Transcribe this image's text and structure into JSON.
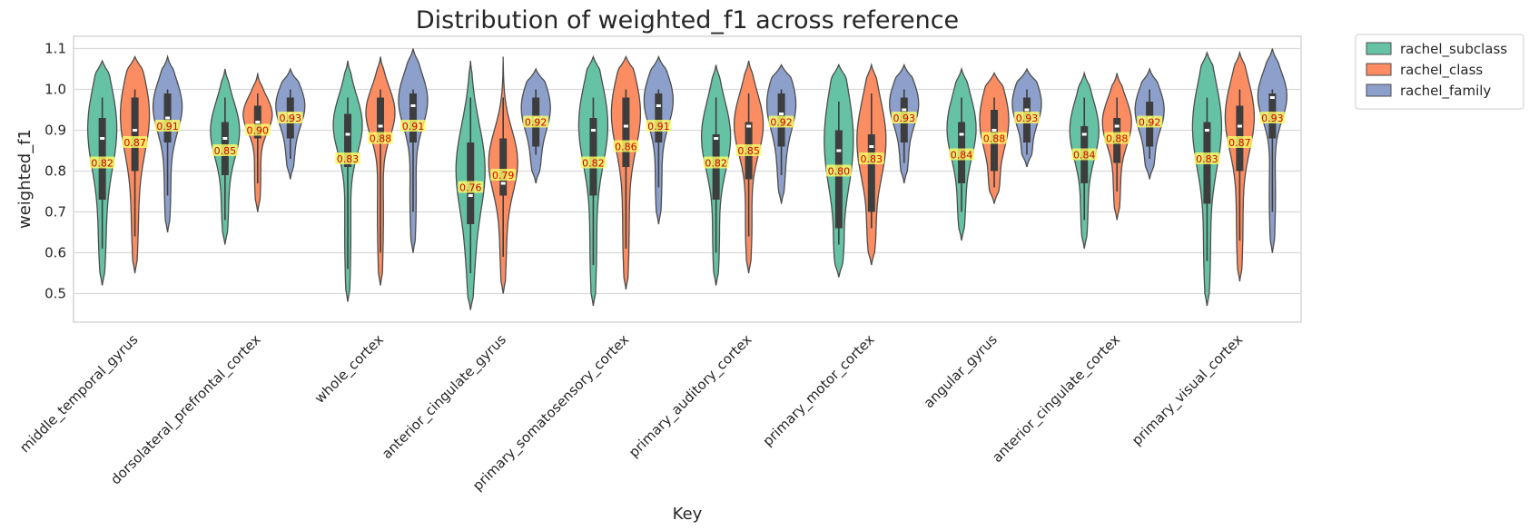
{
  "chart_data": {
    "type": "violin",
    "title": "Distribution of weighted_f1 across reference",
    "xlabel": "Key",
    "ylabel": "weighted_f1",
    "ylim": [
      0.43,
      1.13
    ],
    "yticks": [
      0.5,
      0.6,
      0.7,
      0.8,
      0.9,
      1.0,
      1.1
    ],
    "ytick_labels": [
      "0.5",
      "0.6",
      "0.7",
      "0.8",
      "0.9",
      "1.0",
      "1.1"
    ],
    "grid": true,
    "legend_position": "outside-top-right",
    "categories": [
      "middle_temporal_gyrus",
      "dorsolateral_prefrontal_cortex",
      "whole_cortex",
      "anterior_cingulate_gyrus",
      "primary_somatosensory_cortex",
      "primary_auditory_cortex",
      "primary_motor_cortex",
      "angular_gyrus",
      "anterior_cingulate_cortex",
      "primary_visual_cortex"
    ],
    "series": [
      {
        "name": "rachel_subclass",
        "color": "#66c2a5",
        "means": [
          0.82,
          0.85,
          0.83,
          0.76,
          0.82,
          0.82,
          0.8,
          0.84,
          0.84,
          0.83
        ],
        "mean_labels": [
          "0.82",
          "0.85",
          "0.83",
          "0.76",
          "0.82",
          "0.82",
          "0.80",
          "0.84",
          "0.84",
          "0.83"
        ],
        "medians": [
          0.88,
          0.88,
          0.89,
          0.74,
          0.9,
          0.88,
          0.85,
          0.89,
          0.89,
          0.9
        ],
        "q1": [
          0.73,
          0.79,
          0.81,
          0.67,
          0.74,
          0.73,
          0.66,
          0.77,
          0.77,
          0.72
        ],
        "q3": [
          0.93,
          0.92,
          0.94,
          0.87,
          0.93,
          0.89,
          0.9,
          0.92,
          0.91,
          0.92
        ],
        "wmin": [
          0.61,
          0.68,
          0.56,
          0.55,
          0.57,
          0.6,
          0.62,
          0.7,
          0.68,
          0.58
        ],
        "wmax": [
          0.98,
          0.98,
          0.98,
          0.98,
          0.98,
          0.98,
          0.97,
          0.98,
          0.98,
          0.98
        ],
        "kmin": [
          0.52,
          0.62,
          0.48,
          0.46,
          0.47,
          0.52,
          0.54,
          0.63,
          0.61,
          0.47
        ],
        "kmax": [
          1.07,
          1.05,
          1.07,
          1.07,
          1.08,
          1.06,
          1.06,
          1.05,
          1.04,
          1.09
        ]
      },
      {
        "name": "rachel_class",
        "color": "#fc8d62",
        "means": [
          0.87,
          0.9,
          0.88,
          0.79,
          0.86,
          0.85,
          0.83,
          0.88,
          0.88,
          0.87
        ],
        "mean_labels": [
          "0.87",
          "0.90",
          "0.88",
          "0.79",
          "0.86",
          "0.85",
          "0.83",
          "0.88",
          "0.88",
          "0.87"
        ],
        "medians": [
          0.9,
          0.92,
          0.91,
          0.77,
          0.91,
          0.91,
          0.86,
          0.9,
          0.91,
          0.91
        ],
        "q1": [
          0.8,
          0.88,
          0.87,
          0.74,
          0.81,
          0.78,
          0.7,
          0.8,
          0.82,
          0.8
        ],
        "q3": [
          0.98,
          0.96,
          0.98,
          0.88,
          0.98,
          0.92,
          0.89,
          0.95,
          0.93,
          0.96
        ],
        "wmin": [
          0.64,
          0.77,
          0.6,
          0.59,
          0.61,
          0.64,
          0.66,
          0.76,
          0.75,
          0.63
        ],
        "wmax": [
          1.0,
          0.99,
          1.0,
          0.98,
          1.0,
          0.99,
          0.99,
          0.98,
          0.98,
          1.0
        ],
        "kmin": [
          0.55,
          0.7,
          0.52,
          0.5,
          0.51,
          0.55,
          0.57,
          0.72,
          0.68,
          0.53
        ],
        "kmax": [
          1.08,
          1.04,
          1.08,
          1.08,
          1.08,
          1.07,
          1.06,
          1.04,
          1.04,
          1.09
        ]
      },
      {
        "name": "rachel_family",
        "color": "#8da0cb",
        "means": [
          0.91,
          0.93,
          0.91,
          0.92,
          0.91,
          0.92,
          0.93,
          0.93,
          0.92,
          0.93
        ],
        "mean_labels": [
          "0.91",
          "0.93",
          "0.91",
          "0.92",
          "0.91",
          "0.92",
          "0.93",
          "0.93",
          "0.92",
          "0.93"
        ],
        "medians": [
          0.93,
          0.94,
          0.96,
          0.93,
          0.96,
          0.94,
          0.95,
          0.95,
          0.93,
          0.98
        ],
        "q1": [
          0.87,
          0.88,
          0.87,
          0.86,
          0.87,
          0.86,
          0.87,
          0.87,
          0.86,
          0.88
        ],
        "q3": [
          0.99,
          0.98,
          0.99,
          0.98,
          0.99,
          0.99,
          0.98,
          0.98,
          0.97,
          0.99
        ],
        "wmin": [
          0.74,
          0.83,
          0.7,
          0.84,
          0.76,
          0.79,
          0.82,
          0.84,
          0.83,
          0.7
        ],
        "wmax": [
          1.0,
          1.0,
          1.0,
          1.0,
          1.0,
          1.0,
          1.0,
          1.0,
          1.0,
          1.0
        ],
        "kmin": [
          0.65,
          0.78,
          0.6,
          0.77,
          0.67,
          0.72,
          0.77,
          0.81,
          0.78,
          0.6
        ],
        "kmax": [
          1.08,
          1.05,
          1.1,
          1.05,
          1.08,
          1.06,
          1.06,
          1.05,
          1.05,
          1.1
        ]
      }
    ]
  }
}
